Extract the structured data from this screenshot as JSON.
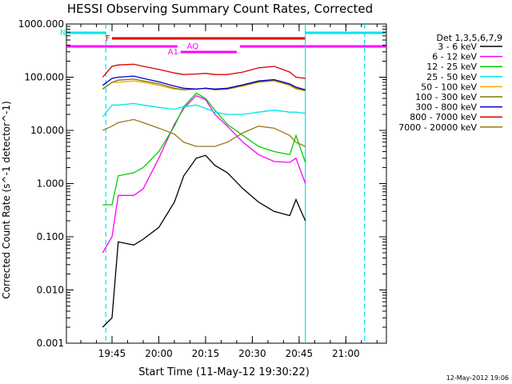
{
  "chart_data": {
    "type": "line",
    "title": "HESSI Observing Summary Count Rates, Corrected",
    "xlabel": "Start Time (11-May-12 19:30:22)",
    "ylabel": "Corrected Count Rate (s^-1 detector^-1)",
    "y_scale": "log",
    "ylim": [
      0.001,
      1000
    ],
    "y_ticks": [
      "0.001",
      "0.010",
      "0.100",
      "1.000",
      "10.000",
      "100.000",
      "1000.000"
    ],
    "xlim": [
      "19:30:22",
      "21:13:00"
    ],
    "x_ticks": [
      "19:45",
      "20:00",
      "20:15",
      "20:30",
      "20:45",
      "21:00"
    ],
    "legend_title": "Det 1,3,5,6,7,9",
    "legend_placement": "right",
    "grid": false,
    "x": [
      "19:42",
      "19:45",
      "19:47",
      "19:52",
      "19:55",
      "20:00",
      "20:05",
      "20:08",
      "20:12",
      "20:15",
      "20:18",
      "20:22",
      "20:27",
      "20:32",
      "20:37",
      "20:42",
      "20:44",
      "20:47"
    ],
    "series": [
      {
        "name": "3 - 6 keV",
        "color": "#000000",
        "values": [
          0.002,
          0.003,
          0.08,
          0.07,
          0.09,
          0.15,
          0.45,
          1.4,
          3.0,
          3.4,
          2.2,
          1.6,
          0.8,
          0.45,
          0.3,
          0.25,
          0.5,
          0.2
        ]
      },
      {
        "name": "6 - 12 keV",
        "color": "#ff00ff",
        "values": [
          0.05,
          0.1,
          0.6,
          0.6,
          0.8,
          3.0,
          13,
          26,
          45,
          38,
          20,
          12,
          6,
          3.5,
          2.6,
          2.5,
          3.0,
          1.0
        ]
      },
      {
        "name": "12 - 25 keV",
        "color": "#00cc00",
        "values": [
          0.4,
          0.4,
          1.4,
          1.6,
          2.0,
          4.0,
          12,
          28,
          50,
          40,
          24,
          13,
          8,
          5,
          4,
          3.5,
          8,
          2.5
        ]
      },
      {
        "name": "25 - 50 keV",
        "color": "#00e5e5",
        "values": [
          18,
          30,
          30,
          32,
          30,
          27,
          25,
          28,
          30,
          26,
          22,
          20,
          20,
          22,
          24,
          22,
          22,
          21
        ]
      },
      {
        "name": "50 - 100 keV",
        "color": "#ffa500",
        "values": [
          60,
          80,
          80,
          85,
          80,
          70,
          60,
          58,
          60,
          62,
          58,
          60,
          68,
          80,
          85,
          70,
          60,
          55
        ]
      },
      {
        "name": "100 - 300 keV",
        "color": "#7a7a00",
        "values": [
          60,
          80,
          88,
          92,
          85,
          75,
          62,
          58,
          60,
          62,
          58,
          60,
          70,
          82,
          88,
          72,
          62,
          57
        ]
      },
      {
        "name": "300 - 800 keV",
        "color": "#0000cc",
        "values": [
          70,
          95,
          100,
          105,
          95,
          82,
          68,
          62,
          60,
          62,
          60,
          62,
          72,
          85,
          90,
          75,
          65,
          58
        ]
      },
      {
        "name": "800 - 7000 keV",
        "color": "#dd0000",
        "values": [
          100,
          160,
          170,
          175,
          160,
          140,
          120,
          112,
          115,
          118,
          112,
          112,
          125,
          150,
          160,
          125,
          100,
          95
        ]
      },
      {
        "name": "7000 - 20000 keV",
        "color": "#99771a",
        "values": [
          10,
          12,
          14,
          16,
          14,
          11,
          8.5,
          6,
          5,
          5,
          5,
          6,
          9,
          12,
          11,
          8,
          6,
          5
        ]
      }
    ],
    "vertical_lines": [
      {
        "time": "19:43",
        "color": "#00e5e5",
        "style": "dashed"
      },
      {
        "time": "20:47",
        "color": "#00e5e5",
        "style": "solid"
      },
      {
        "time": "21:06",
        "color": "#00e5e5",
        "style": "dashed"
      }
    ],
    "flag_bars": [
      {
        "label": "N",
        "color": "#00e5e5",
        "segments": [
          [
            "19:30:22",
            "19:43"
          ],
          [
            "20:47",
            "21:13"
          ]
        ]
      },
      {
        "label": "F",
        "color": "#dd0000",
        "segments": [
          [
            "19:45",
            "20:47"
          ]
        ]
      },
      {
        "label": "AQ",
        "color": "#ff00ff",
        "segments": [
          [
            "19:30:22",
            "20:06"
          ],
          [
            "20:26",
            "21:13"
          ]
        ]
      },
      {
        "label": "A1",
        "color": "#ff00ff",
        "segments": [
          [
            "20:07",
            "20:25"
          ]
        ]
      }
    ],
    "annotations": [
      "12-May-2012 19:06"
    ]
  }
}
